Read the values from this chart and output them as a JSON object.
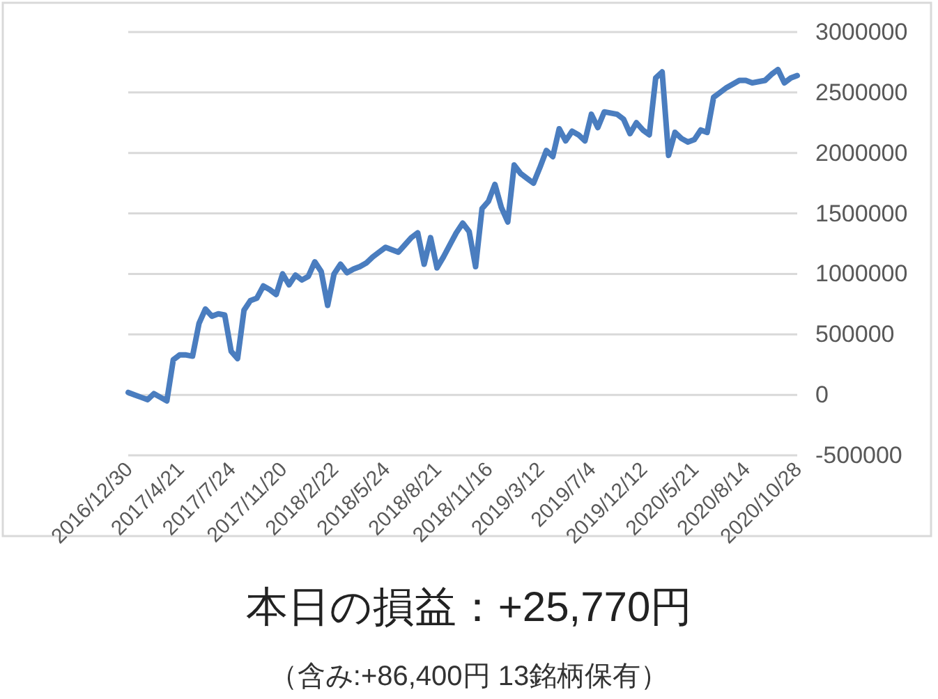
{
  "chart_data": {
    "type": "line",
    "title": "本日の損益：+25,770円",
    "subtitle": "（含み:+86,400円  13銘柄保有）",
    "categories": [
      "2016/12/30",
      null,
      null,
      null,
      null,
      null,
      null,
      null,
      "2017/4/21",
      null,
      null,
      null,
      null,
      null,
      null,
      null,
      "2017/7/24",
      null,
      null,
      null,
      null,
      null,
      null,
      null,
      "2017/11/20",
      null,
      null,
      null,
      null,
      null,
      null,
      null,
      "2018/2/22",
      null,
      null,
      null,
      null,
      null,
      null,
      null,
      "2018/5/24",
      null,
      null,
      null,
      null,
      null,
      null,
      null,
      "2018/8/21",
      null,
      null,
      null,
      null,
      null,
      null,
      null,
      "2018/11/16",
      null,
      null,
      null,
      null,
      null,
      null,
      null,
      "2019/3/12",
      null,
      null,
      null,
      null,
      null,
      null,
      null,
      "2019/7/4",
      null,
      null,
      null,
      null,
      null,
      null,
      null,
      "2019/12/12",
      null,
      null,
      null,
      null,
      null,
      null,
      null,
      "2020/5/21",
      null,
      null,
      null,
      null,
      null,
      null,
      null,
      "2020/8/14",
      null,
      null,
      null,
      null,
      null,
      null,
      null,
      "2020/10/28"
    ],
    "ylim": [
      -500000,
      3000000
    ],
    "yticks": [
      -500000,
      0,
      500000,
      1000000,
      1500000,
      2000000,
      2500000,
      3000000
    ],
    "grid": "y",
    "line_style": "solid",
    "series": [
      {
        "color": "#4a7dbf",
        "values": [
          20000,
          0,
          -20000,
          -40000,
          10000,
          -20000,
          -50000,
          290000,
          330000,
          330000,
          320000,
          590000,
          710000,
          650000,
          670000,
          660000,
          360000,
          300000,
          700000,
          780000,
          800000,
          900000,
          870000,
          830000,
          1000000,
          910000,
          990000,
          950000,
          980000,
          1100000,
          1020000,
          740000,
          1000000,
          1080000,
          1010000,
          1040000,
          1060000,
          1090000,
          1140000,
          1180000,
          1220000,
          1200000,
          1180000,
          1240000,
          1300000,
          1340000,
          1080000,
          1300000,
          1050000,
          1140000,
          1240000,
          1340000,
          1420000,
          1350000,
          1060000,
          1540000,
          1600000,
          1740000,
          1550000,
          1430000,
          1900000,
          1830000,
          1790000,
          1750000,
          1880000,
          2020000,
          1970000,
          2200000,
          2100000,
          2180000,
          2150000,
          2100000,
          2320000,
          2210000,
          2340000,
          2330000,
          2320000,
          2280000,
          2160000,
          2250000,
          2190000,
          2150000,
          2620000,
          2670000,
          1980000,
          2170000,
          2120000,
          2090000,
          2110000,
          2190000,
          2170000,
          2460000,
          2500000,
          2540000,
          2570000,
          2600000,
          2600000,
          2580000,
          2590000,
          2600000,
          2650000,
          2690000,
          2580000,
          2620000,
          2640000
        ]
      }
    ]
  }
}
